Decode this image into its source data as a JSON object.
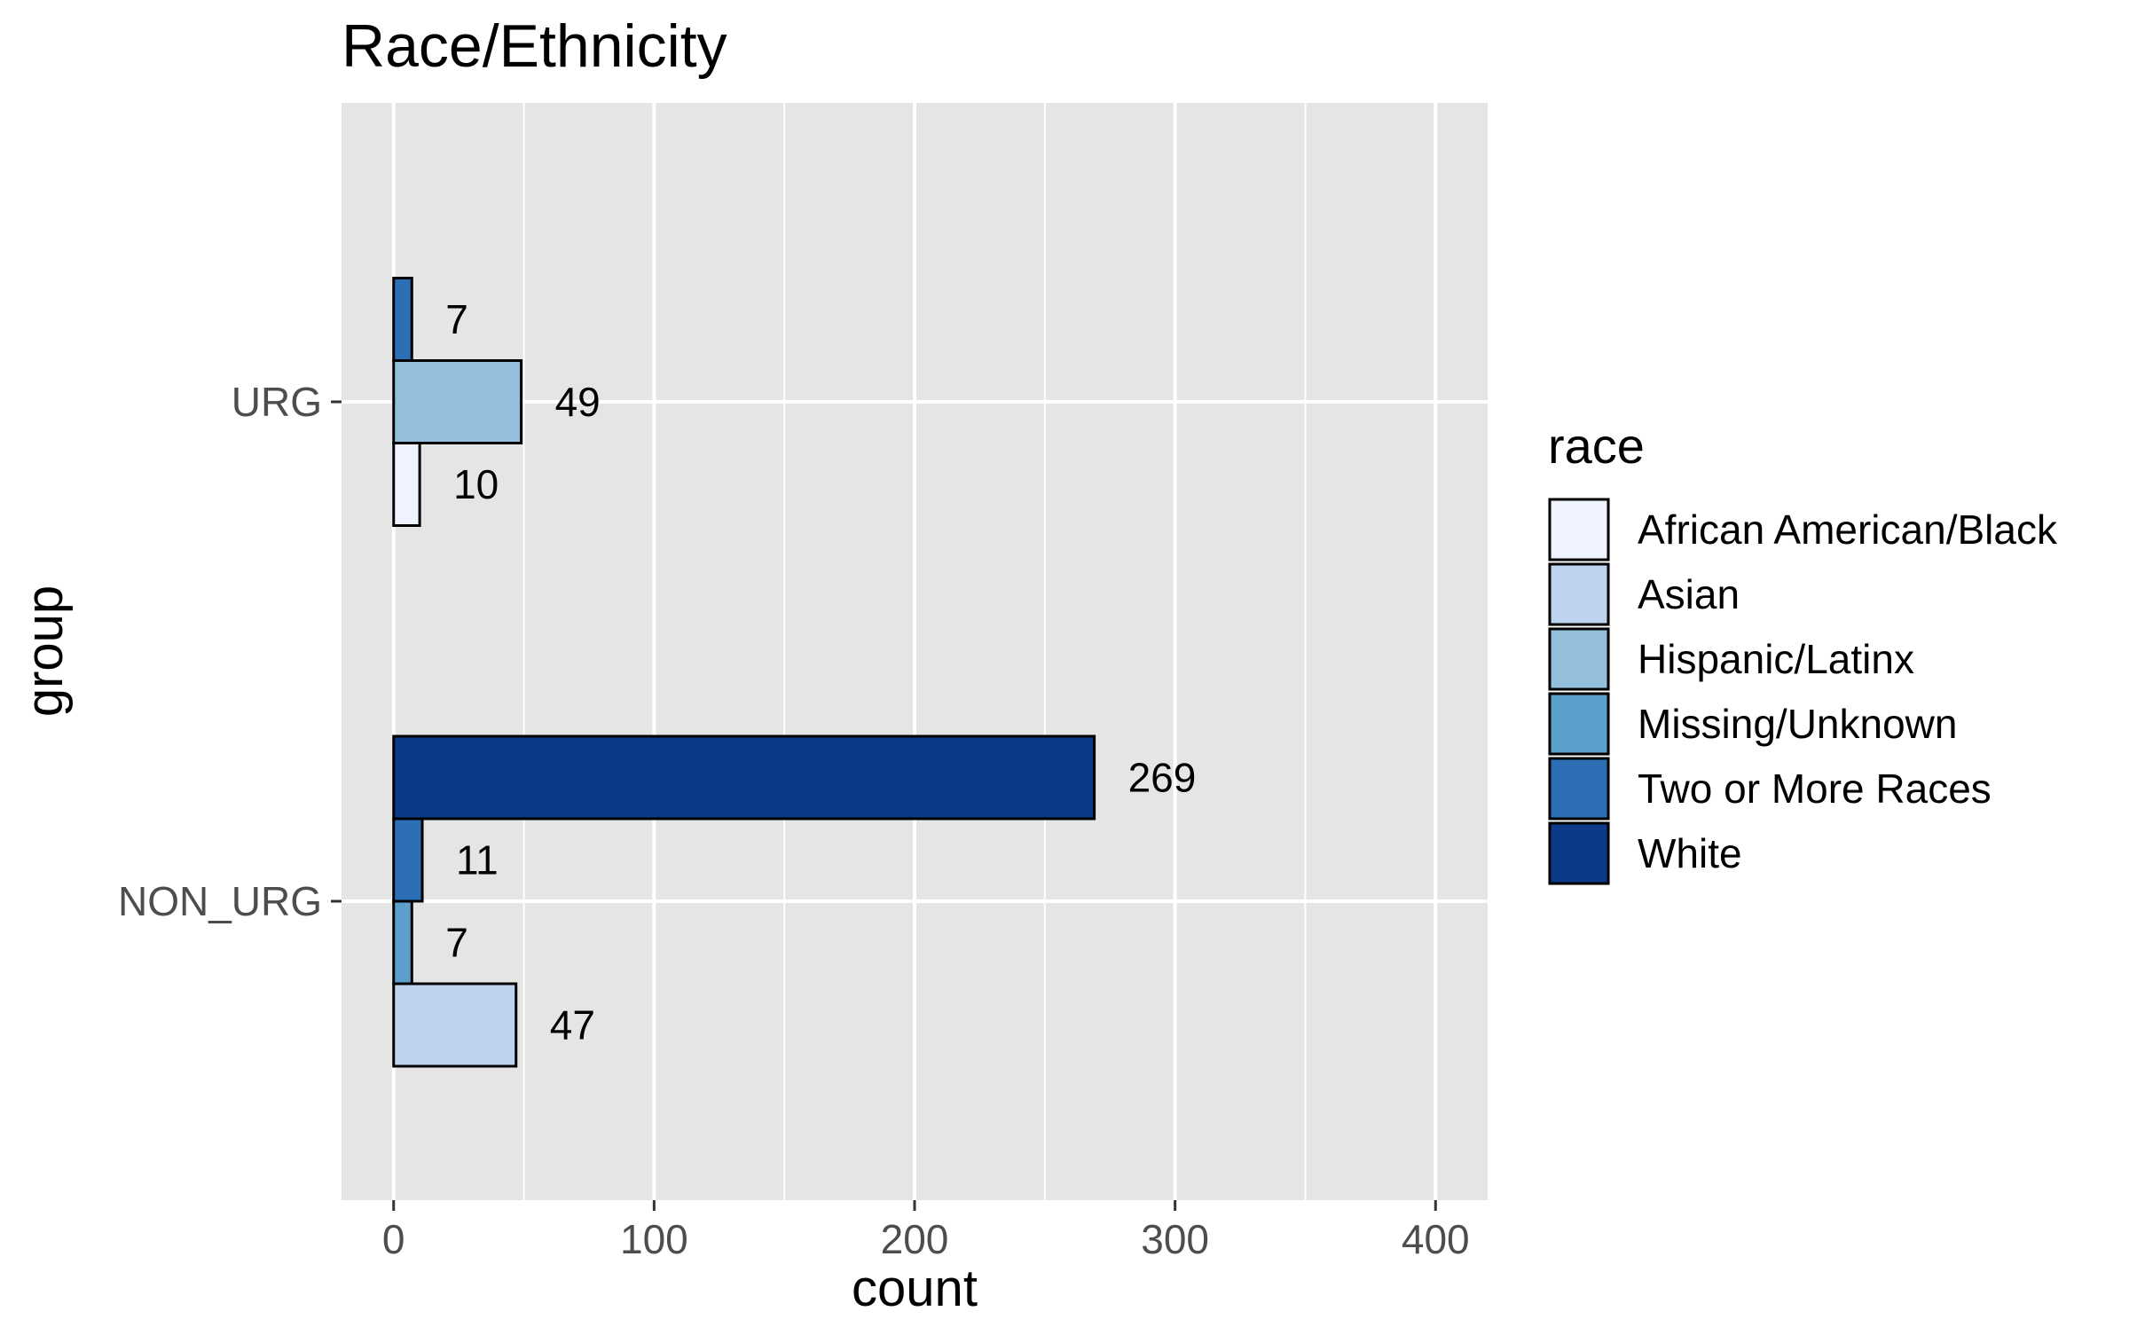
{
  "chart_data": {
    "type": "bar",
    "orientation": "horizontal",
    "title": "Race/Ethnicity",
    "xlabel": "count",
    "ylabel": "group",
    "xlim": [
      -20,
      420
    ],
    "x_ticks": [
      0,
      100,
      200,
      300,
      400
    ],
    "grid": true,
    "legend": {
      "title": "race",
      "placement": "right"
    },
    "categories": [
      "URG",
      "NON_URG"
    ],
    "series": [
      {
        "name": "African American/Black",
        "color": "#eff3ff",
        "values": [
          10,
          null
        ]
      },
      {
        "name": "Asian",
        "color": "#bdd3ee",
        "values": [
          null,
          47
        ]
      },
      {
        "name": "Hispanic/Latinx",
        "color": "#93bfdd",
        "values": [
          49,
          null
        ]
      },
      {
        "name": "Missing/Unknown",
        "color": "#5b9fcd",
        "values": [
          null,
          7
        ]
      },
      {
        "name": "Two or More Races",
        "color": "#2c6fb5",
        "values": [
          7,
          11
        ]
      },
      {
        "name": "White",
        "color": "#0b3b88",
        "values": [
          null,
          269
        ]
      }
    ],
    "colors": {
      "panel": "#e5e5e5",
      "grid": "#ffffff",
      "bar_outline": "#000000"
    }
  }
}
